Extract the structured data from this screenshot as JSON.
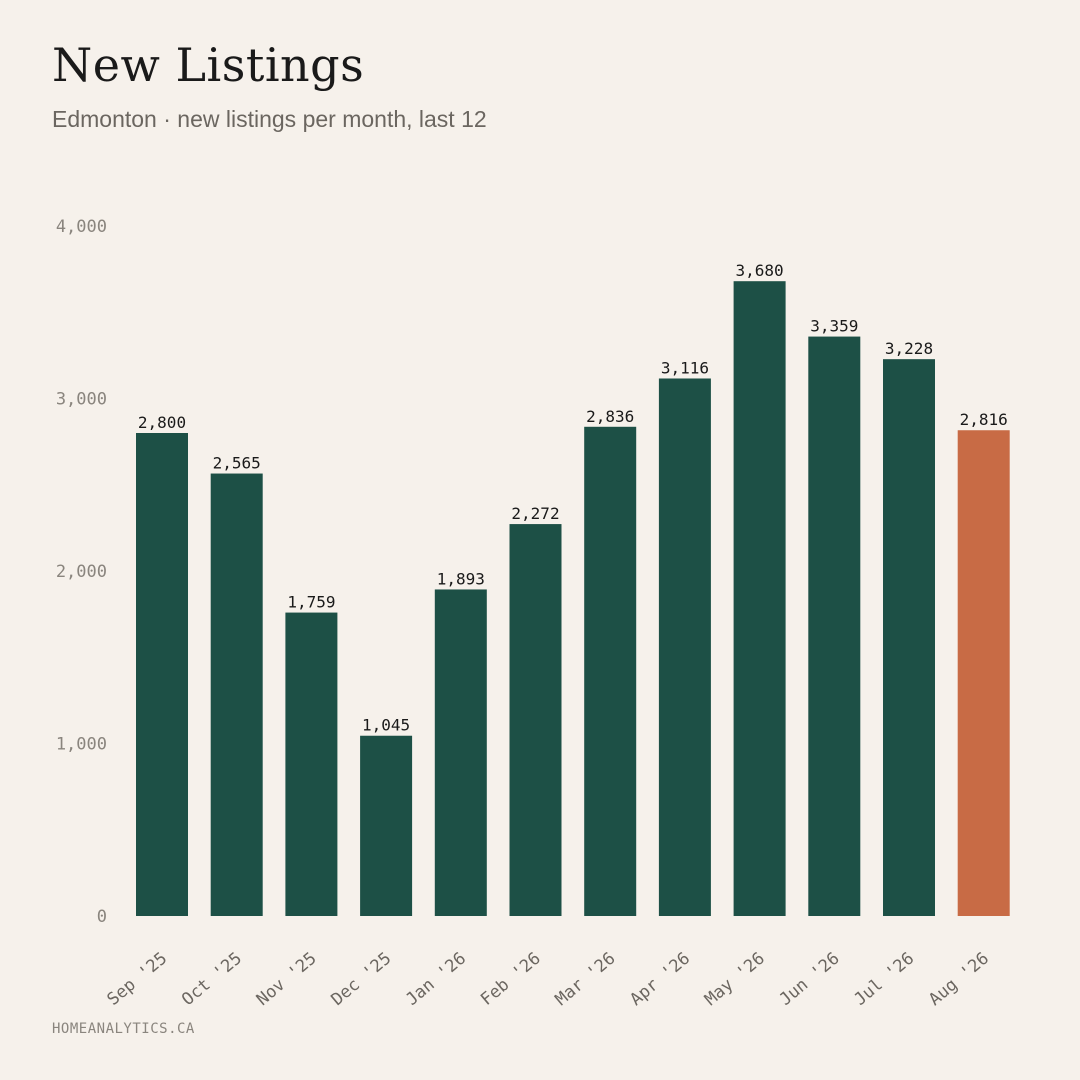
{
  "header": {
    "title": "New Listings",
    "subtitle": "Edmonton · new listings per month, last 12"
  },
  "footer": {
    "source": "HOMEANALYTICS.CA"
  },
  "colors": {
    "background": "#F6F1EB",
    "bar": "#1D5046",
    "highlight": "#C86B45"
  },
  "chart_data": {
    "type": "bar",
    "title": "New Listings",
    "subtitle": "Edmonton · new listings per month, last 12",
    "xlabel": "",
    "ylabel": "",
    "categories": [
      "Sep '25",
      "Oct '25",
      "Nov '25",
      "Dec '25",
      "Jan '26",
      "Feb '26",
      "Mar '26",
      "Apr '26",
      "May '26",
      "Jun '26",
      "Jul '26",
      "Aug '26"
    ],
    "values": [
      2800,
      2565,
      1759,
      1045,
      1893,
      2272,
      2836,
      3116,
      3680,
      3359,
      3228,
      2816
    ],
    "value_labels": [
      "2,800",
      "2,565",
      "1,759",
      "1,045",
      "1,893",
      "2,272",
      "2,836",
      "3,116",
      "3,680",
      "3,359",
      "3,228",
      "2,816"
    ],
    "highlight_index": 11,
    "ylim": [
      0,
      4000
    ],
    "yticks": [
      0,
      1000,
      2000,
      3000,
      4000
    ],
    "ytick_labels": [
      "0",
      "1,000",
      "2,000",
      "3,000",
      "4,000"
    ],
    "grid": false,
    "legend": "none"
  }
}
